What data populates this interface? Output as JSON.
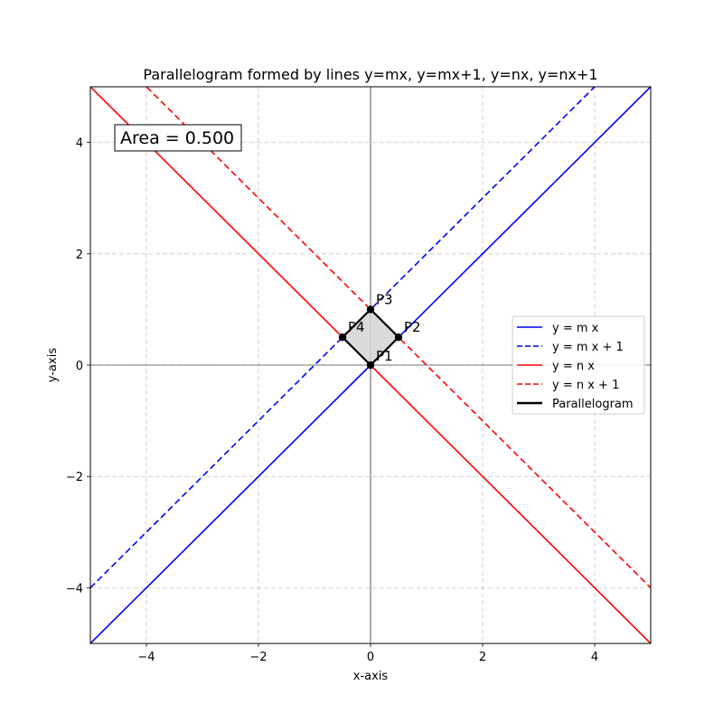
{
  "chart_data": {
    "type": "line",
    "title": "Parallelogram formed by lines y=mx, y=mx+1, y=nx, y=nx+1",
    "xlabel": "x-axis",
    "ylabel": "y-axis",
    "xlim": [
      -5,
      5
    ],
    "ylim": [
      -5,
      5
    ],
    "xticks": [
      -4,
      -2,
      0,
      2,
      4
    ],
    "yticks": [
      -4,
      -2,
      0,
      2,
      4
    ],
    "xtick_labels": [
      "−4",
      "−2",
      "0",
      "2",
      "4"
    ],
    "ytick_labels": [
      "−4",
      "−2",
      "0",
      "2",
      "4"
    ],
    "grid": true,
    "legend_position": "center-right",
    "series": [
      {
        "name": "y = m x",
        "slope": 1,
        "intercept": 0,
        "x": [
          -5,
          5
        ],
        "y": [
          -5,
          5
        ],
        "color": "#0000ff",
        "dash": "solid"
      },
      {
        "name": "y = m x + 1",
        "slope": 1,
        "intercept": 1,
        "x": [
          -5,
          5
        ],
        "y": [
          -4,
          6
        ],
        "color": "#0000ff",
        "dash": "dashed"
      },
      {
        "name": "y = n x",
        "slope": -1,
        "intercept": 0,
        "x": [
          -5,
          5
        ],
        "y": [
          5,
          -5
        ],
        "color": "#ff0000",
        "dash": "solid"
      },
      {
        "name": "y = n x + 1",
        "slope": -1,
        "intercept": 1,
        "x": [
          -5,
          5
        ],
        "y": [
          6,
          -4
        ],
        "color": "#ff0000",
        "dash": "dashed"
      }
    ],
    "parallelogram": {
      "name": "Parallelogram",
      "color": "#000000",
      "fill": "#d3d3d3",
      "points": [
        {
          "label": "P1",
          "x": 0,
          "y": 0
        },
        {
          "label": "P2",
          "x": 0.5,
          "y": 0.5
        },
        {
          "label": "P3",
          "x": 0,
          "y": 1
        },
        {
          "label": "P4",
          "x": -0.5,
          "y": 0.5
        }
      ]
    },
    "annotation": {
      "text": "Area = 0.500",
      "color": "#008000"
    }
  }
}
